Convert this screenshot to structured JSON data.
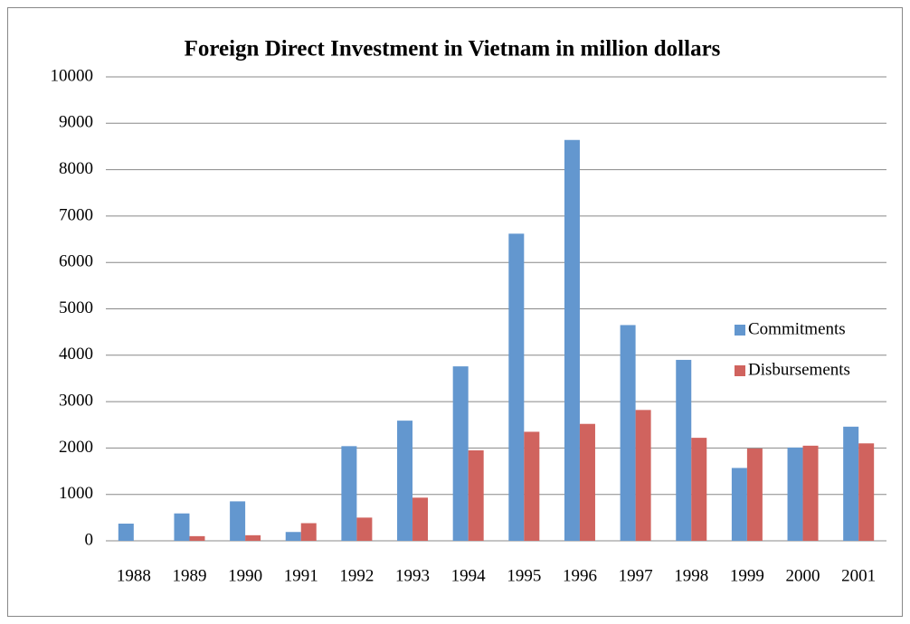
{
  "chart_data": {
    "type": "bar",
    "title": "Foreign Direct Investment in Vietnam in million dollars",
    "categories": [
      "1988",
      "1989",
      "1990",
      "1991",
      "1992",
      "1993",
      "1994",
      "1995",
      "1996",
      "1997",
      "1998",
      "1999",
      "2000",
      "2001"
    ],
    "series": [
      {
        "name": "Commitments",
        "color": "#6397cf",
        "values": [
          370,
          590,
          850,
          190,
          2040,
          2590,
          3760,
          6620,
          8640,
          4650,
          3900,
          1570,
          2010,
          2460
        ]
      },
      {
        "name": "Disbursements",
        "color": "#d0635e",
        "values": [
          0,
          100,
          120,
          380,
          500,
          930,
          1950,
          2350,
          2520,
          2820,
          2220,
          1990,
          2050,
          2100
        ]
      }
    ],
    "ylim": [
      0,
      10000
    ],
    "yticks": [
      0,
      1000,
      2000,
      3000,
      4000,
      5000,
      6000,
      7000,
      8000,
      9000,
      10000
    ],
    "grid": true,
    "legend": "right"
  }
}
